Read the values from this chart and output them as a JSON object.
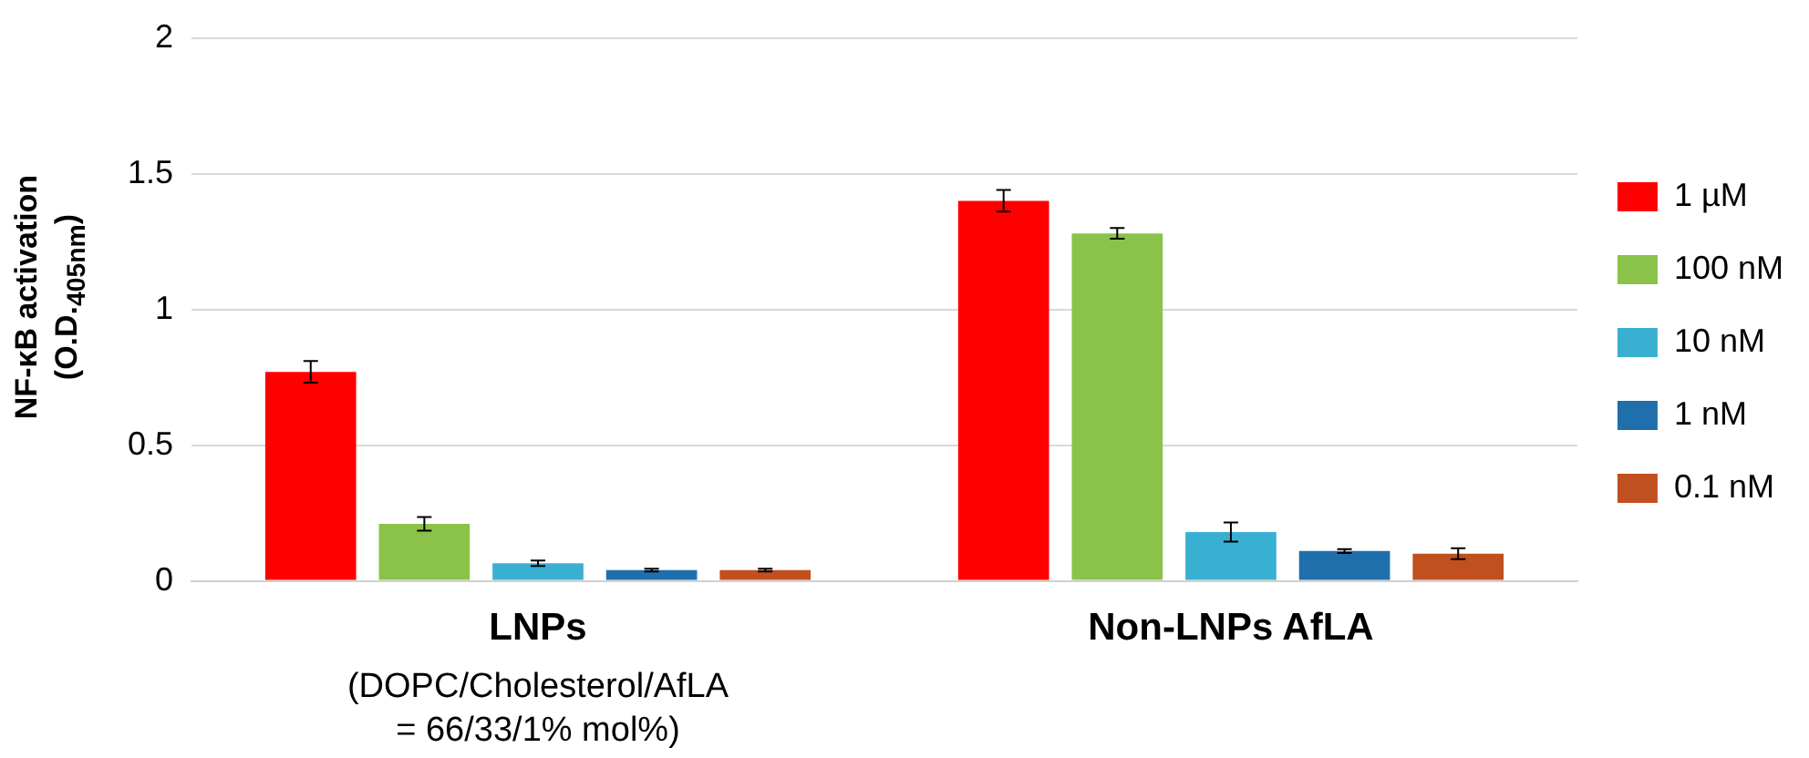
{
  "chart_data": {
    "type": "bar",
    "ylabel": "NF-κB activation (O.D.$_{405nm}$)",
    "categories": [
      "LNPs",
      "Non-LNPs AfLA"
    ],
    "series": [
      {
        "name": "1 µM",
        "color": "#ff0000",
        "values": [
          0.77,
          1.4
        ],
        "errors": [
          0.04,
          0.04
        ]
      },
      {
        "name": "100 nM",
        "color": "#8bc34a",
        "values": [
          0.21,
          1.28
        ],
        "errors": [
          0.025,
          0.02
        ]
      },
      {
        "name": "10 nM",
        "color": "#39b0d2",
        "values": [
          0.065,
          0.18
        ],
        "errors": [
          0.01,
          0.035
        ]
      },
      {
        "name": "1 nM",
        "color": "#1f6fad",
        "values": [
          0.04,
          0.11
        ],
        "errors": [
          0.005,
          0.007
        ]
      },
      {
        "name": "0.1 nM",
        "color": "#c0501f",
        "values": [
          0.04,
          0.1
        ],
        "errors": [
          0.005,
          0.02
        ]
      }
    ],
    "ylim": [
      0,
      2
    ],
    "yticks": [
      0,
      0.5,
      1,
      1.5,
      2
    ],
    "grid": "y",
    "legend": "right",
    "annotations": [
      "(DOPC/Cholesterol/AfLA = 66/33/1% mol%)"
    ]
  }
}
